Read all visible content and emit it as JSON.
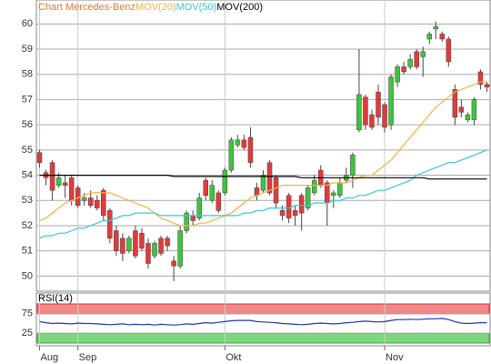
{
  "chart_data": [
    {
      "type": "candlestick",
      "title": "Chart Mercedes-Benz",
      "title_color": "#e07a2a",
      "categories": [
        "Aug",
        null,
        null,
        null,
        null,
        null,
        "Sep",
        null,
        null,
        null,
        null,
        null,
        null,
        null,
        null,
        null,
        null,
        null,
        null,
        null,
        null,
        null,
        null,
        null,
        null,
        null,
        null,
        null,
        null,
        "Okt",
        null,
        null,
        null,
        null,
        null,
        null,
        null,
        null,
        null,
        null,
        null,
        null,
        null,
        null,
        null,
        null,
        null,
        null,
        null,
        null,
        null,
        null,
        null,
        null,
        "Nov",
        null,
        null,
        null,
        null,
        null,
        null,
        null,
        null,
        null,
        null,
        null,
        null,
        null,
        null,
        null,
        null
      ],
      "open": [
        54.9,
        54.1,
        54.5,
        53.6,
        53.7,
        53.9,
        53.5,
        53.0,
        53.1,
        53.0,
        53.4,
        52.6,
        51.8,
        51.5,
        51.0,
        51.8,
        51.7,
        51.3,
        50.8,
        51.5,
        51.5,
        50.6,
        50.4,
        51.8,
        52.4,
        52.3,
        53.8,
        53.0,
        53.3,
        53.3,
        54.2,
        55.2,
        55.4,
        55.5,
        53.5,
        53.4,
        54.5,
        53.9,
        52.6,
        53.2,
        52.6,
        53.2,
        52.7,
        53.3,
        54.2,
        53.7,
        53.2,
        53.2,
        53.8,
        54.0,
        55.8,
        57.1,
        56.4,
        57.3,
        56.8,
        56.0,
        57.7,
        58.3,
        58.3,
        58.9,
        58.7,
        59.4,
        59.8,
        59.6,
        59.4,
        57.4,
        56.7,
        56.2,
        56.2,
        58.1,
        57.6
      ],
      "high": [
        55.0,
        54.2,
        54.6,
        54.1,
        54.0,
        54.0,
        53.6,
        53.3,
        53.4,
        53.2,
        53.5,
        52.7,
        52.0,
        51.7,
        51.6,
        52.0,
        51.9,
        51.5,
        51.4,
        51.6,
        51.6,
        50.8,
        52.0,
        52.6,
        52.6,
        53.3,
        53.9,
        53.8,
        53.4,
        54.3,
        55.5,
        55.6,
        55.6,
        55.9,
        53.7,
        54.2,
        54.6,
        54.0,
        52.8,
        53.3,
        52.8,
        53.3,
        53.6,
        54.0,
        54.4,
        53.8,
        53.4,
        53.9,
        54.3,
        54.9,
        59.0,
        57.2,
        56.6,
        57.6,
        56.9,
        58.0,
        58.4,
        58.5,
        58.8,
        59.0,
        59.1,
        59.7,
        60.1,
        59.7,
        59.5,
        57.6,
        57.0,
        56.5,
        57.1,
        58.2,
        57.7
      ],
      "low": [
        54.3,
        53.6,
        53.0,
        53.5,
        53.1,
        52.8,
        52.7,
        52.8,
        52.7,
        52.6,
        52.2,
        51.3,
        50.8,
        50.6,
        50.9,
        50.7,
        51.0,
        50.3,
        50.7,
        50.8,
        51.0,
        49.8,
        50.3,
        51.7,
        52.0,
        52.2,
        53.0,
        52.9,
        52.5,
        53.2,
        54.1,
        55.1,
        55.0,
        54.3,
        53.0,
        53.3,
        53.2,
        52.7,
        52.2,
        52.1,
        52.0,
        51.8,
        52.6,
        53.2,
        53.5,
        52.0,
        52.7,
        53.1,
        53.7,
        53.5,
        55.7,
        55.8,
        55.8,
        56.0,
        55.7,
        55.8,
        57.5,
        58.0,
        58.2,
        58.2,
        57.9,
        59.2,
        59.4,
        59.3,
        58.3,
        56.0,
        56.3,
        56.1,
        56.0,
        57.4,
        57.3
      ],
      "close": [
        54.5,
        53.9,
        53.4,
        53.9,
        53.6,
        53.0,
        52.8,
        53.1,
        52.8,
        52.7,
        52.4,
        51.5,
        51.0,
        50.9,
        51.5,
        50.8,
        51.1,
        50.5,
        51.3,
        50.9,
        51.2,
        50.4,
        51.8,
        52.5,
        52.2,
        53.1,
        53.2,
        53.6,
        52.6,
        54.2,
        55.4,
        55.4,
        55.1,
        54.5,
        53.2,
        54.0,
        53.3,
        52.9,
        52.4,
        52.3,
        52.4,
        52.5,
        53.5,
        53.8,
        53.6,
        52.9,
        53.3,
        53.7,
        54.0,
        54.8,
        57.2,
        56.0,
        55.9,
        56.3,
        55.9,
        57.9,
        58.3,
        58.1,
        58.6,
        58.3,
        58.9,
        59.6,
        59.9,
        59.4,
        58.5,
        56.3,
        56.5,
        56.4,
        57.0,
        57.6,
        57.5
      ],
      "up_color": "#3ec43e",
      "down_color": "#e23a3a",
      "series": [
        {
          "name": "MOV(20)",
          "color": "#f2b33d",
          "values": [
            52.2,
            52.3,
            52.5,
            52.7,
            52.9,
            53.0,
            53.1,
            53.2,
            53.3,
            53.3,
            53.3,
            53.3,
            53.2,
            53.1,
            53.0,
            52.9,
            52.8,
            52.7,
            52.5,
            52.3,
            52.2,
            52.1,
            52.0,
            52.0,
            52.0,
            52.1,
            52.1,
            52.2,
            52.3,
            52.4,
            52.5,
            52.7,
            52.9,
            53.1,
            53.2,
            53.3,
            53.4,
            53.5,
            53.6,
            53.6,
            53.6,
            53.6,
            53.6,
            53.6,
            53.6,
            53.6,
            53.7,
            53.7,
            53.7,
            53.8,
            53.9,
            54.0,
            54.0,
            54.2,
            54.4,
            54.6,
            54.9,
            55.2,
            55.5,
            55.8,
            56.1,
            56.4,
            56.7,
            56.9,
            57.1,
            57.3,
            57.4,
            57.5,
            57.6,
            57.7,
            57.7
          ]
        },
        {
          "name": "MOV(50)",
          "color": "#36c6e0",
          "values": [
            51.5,
            51.6,
            51.6,
            51.7,
            51.7,
            51.8,
            51.9,
            51.9,
            52.0,
            52.1,
            52.2,
            52.2,
            52.3,
            52.4,
            52.4,
            52.5,
            52.5,
            52.5,
            52.5,
            52.4,
            52.4,
            52.4,
            52.4,
            52.4,
            52.4,
            52.4,
            52.4,
            52.4,
            52.4,
            52.4,
            52.4,
            52.4,
            52.5,
            52.5,
            52.6,
            52.6,
            52.7,
            52.7,
            52.7,
            52.7,
            52.8,
            52.8,
            52.8,
            52.9,
            52.9,
            52.9,
            53.0,
            53.0,
            53.1,
            53.1,
            53.2,
            53.2,
            53.3,
            53.4,
            53.4,
            53.5,
            53.6,
            53.7,
            53.8,
            54.0,
            54.1,
            54.2,
            54.3,
            54.4,
            54.5,
            54.5,
            54.6,
            54.7,
            54.8,
            54.9,
            55.0
          ]
        },
        {
          "name": "MOV(200)",
          "color": "#000000",
          "values": [
            54.0,
            54.0,
            54.0,
            54.0,
            54.0,
            54.0,
            54.0,
            54.0,
            54.0,
            54.0,
            54.0,
            54.0,
            54.0,
            54.0,
            54.0,
            54.0,
            54.0,
            54.0,
            54.0,
            54.0,
            54.0,
            53.95,
            53.95,
            53.95,
            53.95,
            53.95,
            53.95,
            53.95,
            53.95,
            53.95,
            53.95,
            53.95,
            53.95,
            53.95,
            53.95,
            53.95,
            53.95,
            53.95,
            53.95,
            53.95,
            53.95,
            53.9,
            53.9,
            53.9,
            53.9,
            53.9,
            53.9,
            53.9,
            53.9,
            53.9,
            53.9,
            53.9,
            53.9,
            53.9,
            53.9,
            53.9,
            53.9,
            53.9,
            53.9,
            53.9,
            53.9,
            53.85,
            53.85,
            53.85,
            53.85,
            53.85,
            53.85,
            53.85,
            53.85,
            53.85,
            53.85
          ]
        }
      ],
      "ylim": [
        49.4,
        60.95
      ],
      "yticks": [
        50,
        51,
        52,
        53,
        54,
        55,
        56,
        57,
        58,
        59,
        60
      ],
      "grid": true
    },
    {
      "type": "line",
      "title": "RSI(14)",
      "series": [
        {
          "name": "RSI(14)",
          "color": "#2233bb",
          "values": [
            55,
            52,
            50,
            51,
            50,
            49,
            51,
            50,
            50,
            49,
            48,
            47,
            48,
            49,
            47,
            48,
            47,
            48,
            46,
            48,
            47,
            46,
            47,
            49,
            48,
            50,
            52,
            51,
            53,
            55,
            57,
            58,
            58,
            58,
            55,
            54,
            53,
            52,
            50,
            49,
            48,
            47,
            48,
            50,
            51,
            50,
            49,
            50,
            52,
            53,
            55,
            56,
            55,
            54,
            55,
            58,
            60,
            60,
            61,
            60,
            61,
            62,
            62,
            63,
            60,
            55,
            51,
            50,
            51,
            52,
            52
          ]
        }
      ],
      "ylim": [
        0,
        100
      ],
      "yticks": [
        25,
        75
      ],
      "upper_band_color": "#f08a8a",
      "lower_band_color": "#7fd67f"
    }
  ]
}
